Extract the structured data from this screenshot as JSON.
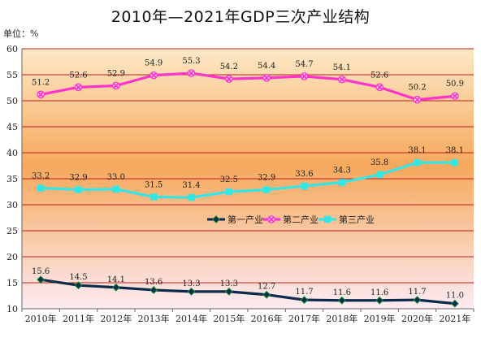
{
  "chart_data": {
    "type": "line",
    "title": "2010年—2021年GDP三次产业结构",
    "unit_label": "单位：%",
    "categories": [
      "2010年",
      "2011年",
      "2012年",
      "2013年",
      "2014年",
      "2015年",
      "2016年",
      "2017年",
      "2018年",
      "2019年",
      "2020年",
      "2021年"
    ],
    "ylim": [
      10,
      60
    ],
    "yticks": [
      10,
      15,
      20,
      25,
      30,
      35,
      40,
      45,
      50,
      55,
      60
    ],
    "grid": true,
    "legend_position": "center",
    "series": [
      {
        "name": "第一产业",
        "color": "#0b2a4a",
        "marker": "diamond",
        "values": [
          15.6,
          14.5,
          14.1,
          13.6,
          13.3,
          13.3,
          12.7,
          11.7,
          11.6,
          11.6,
          11.7,
          11.0
        ]
      },
      {
        "name": "第二产业",
        "color": "#ff33cc",
        "marker": "x",
        "values": [
          51.2,
          52.6,
          52.9,
          54.9,
          55.3,
          54.2,
          54.4,
          54.7,
          54.1,
          52.6,
          50.2,
          50.9
        ]
      },
      {
        "name": "第三产业",
        "color": "#33e6e6",
        "marker": "square",
        "values": [
          33.2,
          32.9,
          33.0,
          31.5,
          31.4,
          32.5,
          32.9,
          33.6,
          34.3,
          35.8,
          38.1,
          38.1
        ]
      }
    ],
    "background": {
      "top": "#fde9c7",
      "middle": "#f6a85c",
      "bottom": "#fcebf3"
    },
    "gridline_color": "#c02020"
  }
}
